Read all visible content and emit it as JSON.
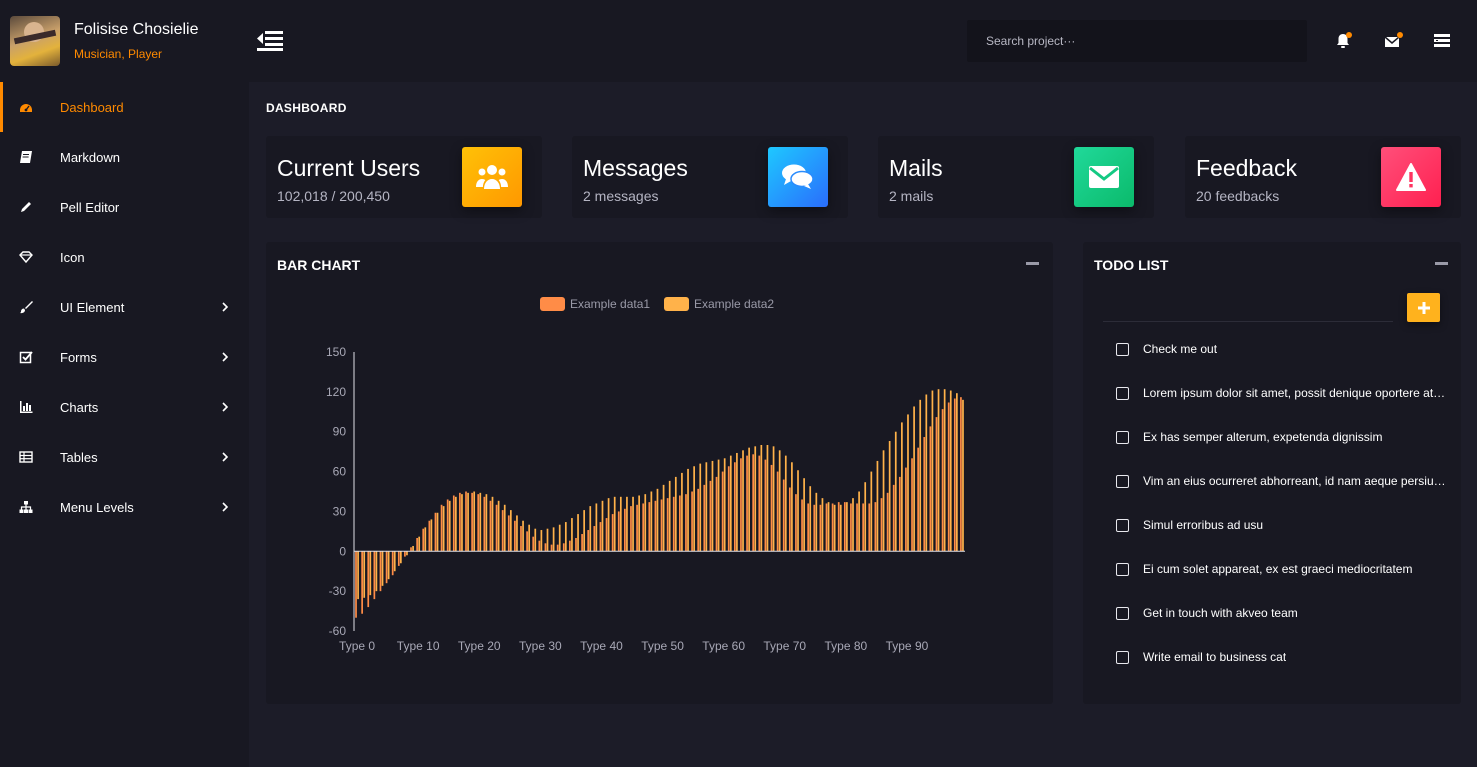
{
  "profile": {
    "name": "Folisise Chosielie",
    "role": "Musician, Player"
  },
  "sidebar": {
    "items": [
      {
        "label": "Dashboard",
        "icon": "dashboard-icon",
        "active": true,
        "has_children": false
      },
      {
        "label": "Markdown",
        "icon": "book-icon",
        "active": false,
        "has_children": false
      },
      {
        "label": "Pell Editor",
        "icon": "pencil-icon",
        "active": false,
        "has_children": false
      },
      {
        "label": "Icon",
        "icon": "diamond-icon",
        "active": false,
        "has_children": false
      },
      {
        "label": "UI Element",
        "icon": "brush-icon",
        "active": false,
        "has_children": true
      },
      {
        "label": "Forms",
        "icon": "checkbox-icon",
        "active": false,
        "has_children": true
      },
      {
        "label": "Charts",
        "icon": "bar-chart-icon",
        "active": false,
        "has_children": true
      },
      {
        "label": "Tables",
        "icon": "table-icon",
        "active": false,
        "has_children": true
      },
      {
        "label": "Menu Levels",
        "icon": "sitemap-icon",
        "active": false,
        "has_children": true
      }
    ]
  },
  "topbar": {
    "search_placeholder": "Search project···"
  },
  "page": {
    "title": "DASHBOARD"
  },
  "cards": [
    {
      "title": "Current Users",
      "sub": "102,018 / 200,450",
      "icon": "users-icon"
    },
    {
      "title": "Messages",
      "sub": "2 messages",
      "icon": "chat-icon"
    },
    {
      "title": "Mails",
      "sub": "2 mails",
      "icon": "envelope-icon"
    },
    {
      "title": "Feedback",
      "sub": "20 feedbacks",
      "icon": "warning-icon"
    }
  ],
  "bar_panel": {
    "title": "BAR CHART"
  },
  "todo": {
    "title": "TODO LIST",
    "items": [
      "Check me out",
      "Lorem ipsum dolor sit amet, possit denique oportere at his, et...",
      "Ex has semper alterum, expetenda dignissim",
      "Vim an eius ocurreret abhorreant, id nam aeque persius ornat...",
      "Simul erroribus ad usu",
      "Ei cum solet appareat, ex est graeci mediocritatem",
      "Get in touch with akveo team",
      "Write email to business cat"
    ]
  },
  "colors": {
    "accent": "#ff8a00",
    "data1": "#ff8c47",
    "data2": "#ffb24a"
  },
  "chart_data": {
    "type": "bar",
    "title": "",
    "legend": [
      "Example data1",
      "Example data2"
    ],
    "x_tick_labels": [
      "Type 0",
      "Type 10",
      "Type 20",
      "Type 30",
      "Type 40",
      "Type 50",
      "Type 60",
      "Type 70",
      "Type 80",
      "Type 90"
    ],
    "y_ticks": [
      "150",
      "120",
      "90",
      "60",
      "30",
      "0",
      "-30",
      "-60"
    ],
    "ylim": [
      -60,
      150
    ],
    "legend_position": "top-center",
    "grid": false,
    "categories_count": 100,
    "series": [
      {
        "name": "Example data1",
        "values": [
          -50,
          -47,
          -42,
          -36,
          -30,
          -24,
          -18,
          -11,
          -4,
          3,
          10,
          17,
          23,
          29,
          35,
          39,
          42,
          44,
          45,
          44,
          43,
          41,
          38,
          35,
          31,
          27,
          23,
          19,
          15,
          11,
          8,
          6,
          5,
          5,
          6,
          8,
          10,
          13,
          16,
          19,
          22,
          25,
          28,
          30,
          32,
          34,
          35,
          36,
          37,
          38,
          39,
          40,
          41,
          42,
          43,
          45,
          47,
          50,
          53,
          56,
          60,
          64,
          67,
          70,
          72,
          73,
          72,
          69,
          65,
          60,
          54,
          48,
          43,
          39,
          36,
          35,
          35,
          36,
          36,
          37,
          37,
          36,
          36,
          36,
          36,
          37,
          40,
          44,
          50,
          56,
          63,
          70,
          78,
          86,
          94,
          101,
          107,
          112,
          115,
          116
        ]
      },
      {
        "name": "Example data2",
        "values": [
          -36,
          -35,
          -33,
          -30,
          -26,
          -21,
          -15,
          -9,
          -3,
          4,
          11,
          18,
          24,
          29,
          34,
          38,
          41,
          43,
          44,
          45,
          44,
          43,
          41,
          38,
          35,
          31,
          27,
          23,
          20,
          17,
          16,
          17,
          18,
          20,
          22,
          25,
          28,
          31,
          34,
          36,
          38,
          40,
          41,
          41,
          41,
          41,
          42,
          43,
          45,
          47,
          50,
          53,
          56,
          59,
          62,
          64,
          66,
          67,
          68,
          69,
          70,
          72,
          74,
          76,
          78,
          79,
          80,
          80,
          79,
          76,
          72,
          67,
          61,
          55,
          49,
          44,
          40,
          37,
          35,
          35,
          37,
          40,
          45,
          52,
          60,
          68,
          76,
          83,
          90,
          97,
          103,
          109,
          114,
          118,
          121,
          122,
          122,
          121,
          119,
          114
        ]
      }
    ]
  }
}
